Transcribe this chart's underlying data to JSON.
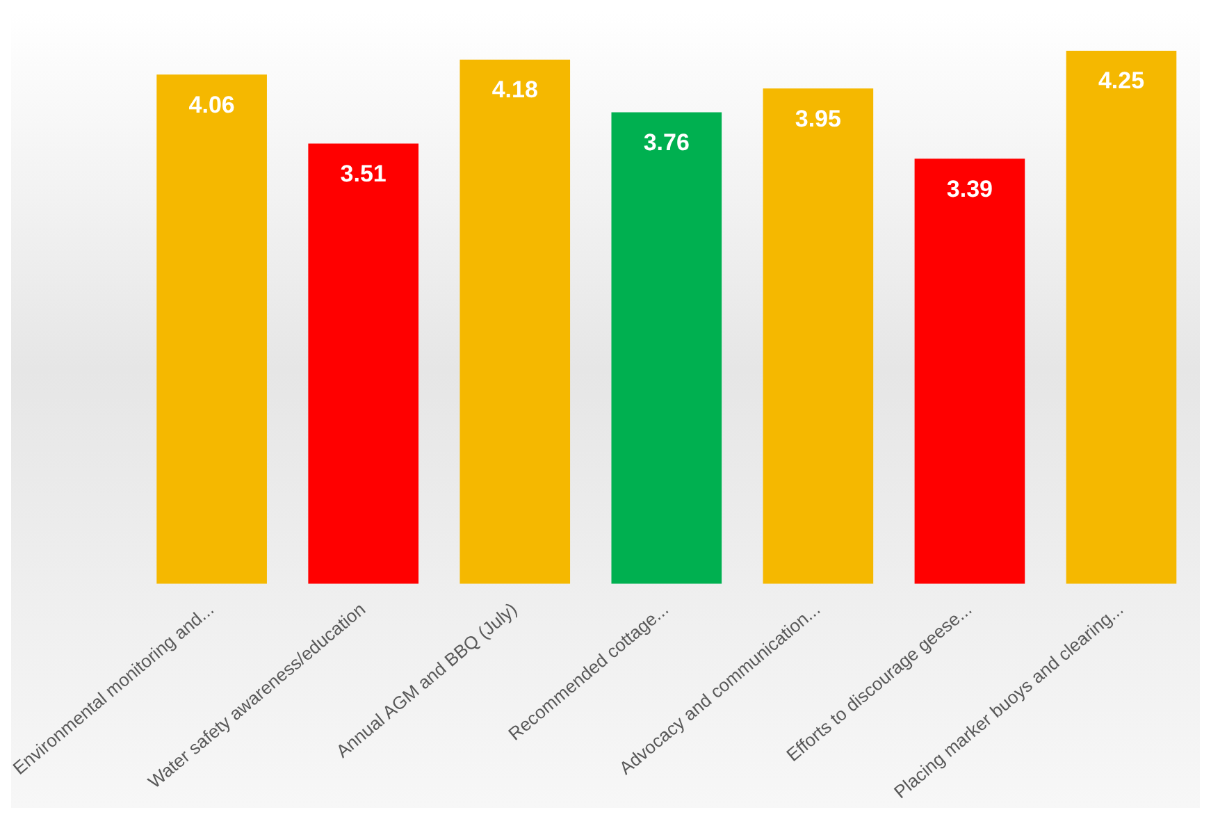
{
  "chart_data": {
    "type": "bar",
    "categories": [
      "Environmental monitoring and...",
      "Water safety awareness/education",
      "Annual AGM and BBQ (July)",
      "Recommended cottage...",
      "Advocacy and communication...",
      "Efforts to discourage geese...",
      "Placing marker buoys and clearing..."
    ],
    "values": [
      4.06,
      3.51,
      4.18,
      3.76,
      3.95,
      3.39,
      4.25
    ],
    "colors": [
      "#f5b800",
      "#ff0000",
      "#f5b800",
      "#00b050",
      "#f5b800",
      "#ff0000",
      "#f5b800"
    ],
    "data_labels": true,
    "grid": false,
    "legend": false
  }
}
